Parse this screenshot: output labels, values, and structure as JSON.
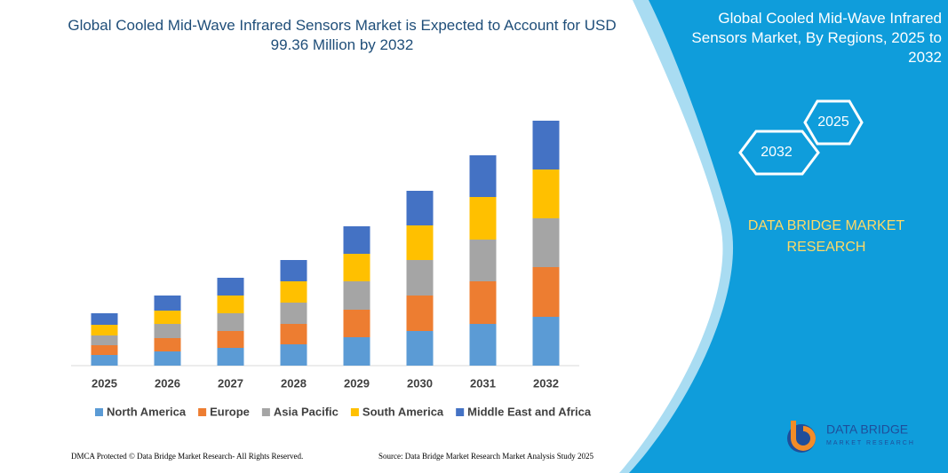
{
  "chart_data": {
    "type": "stacked-bar",
    "title": "Global Cooled Mid-Wave Infrared Sensors Market is Expected to Account for USD 99.36 Million by 2032",
    "categories": [
      "2025",
      "2026",
      "2027",
      "2028",
      "2029",
      "2030",
      "2031",
      "2032"
    ],
    "series": [
      {
        "name": "North America",
        "color": "#5b9bd5",
        "values": [
          12,
          16,
          20,
          24,
          32,
          39,
          47,
          55
        ]
      },
      {
        "name": "Europe",
        "color": "#ed7d31",
        "values": [
          11,
          15,
          19,
          23,
          31,
          40,
          48,
          56
        ]
      },
      {
        "name": "Asia Pacific",
        "color": "#a5a5a5",
        "values": [
          11,
          16,
          20,
          24,
          32,
          40,
          47,
          55
        ]
      },
      {
        "name": "South America",
        "color": "#ffc000",
        "values": [
          12,
          15,
          20,
          24,
          31,
          39,
          48,
          55
        ]
      },
      {
        "name": "Middle East and Africa",
        "color": "#4472c4",
        "values": [
          13,
          17,
          20,
          24,
          31,
          39,
          47,
          55
        ]
      }
    ],
    "ylim": [
      0,
      290
    ],
    "legend": "bottom"
  },
  "sidebar": {
    "title": "Global Cooled Mid-Wave Infrared Sensors Market, By Regions, 2025 to 2032",
    "hexagons": [
      "2025",
      "2032"
    ],
    "brand": "DATA BRIDGE MARKET RESEARCH"
  },
  "logo": {
    "name": "DATA BRIDGE",
    "tagline": "MARKET RESEARCH"
  },
  "footer": {
    "left": "DMCA Protected © Data Bridge Market Research- All Rights Reserved.",
    "right": "Source: Data Bridge Market Research Market Analysis Study 2025"
  }
}
